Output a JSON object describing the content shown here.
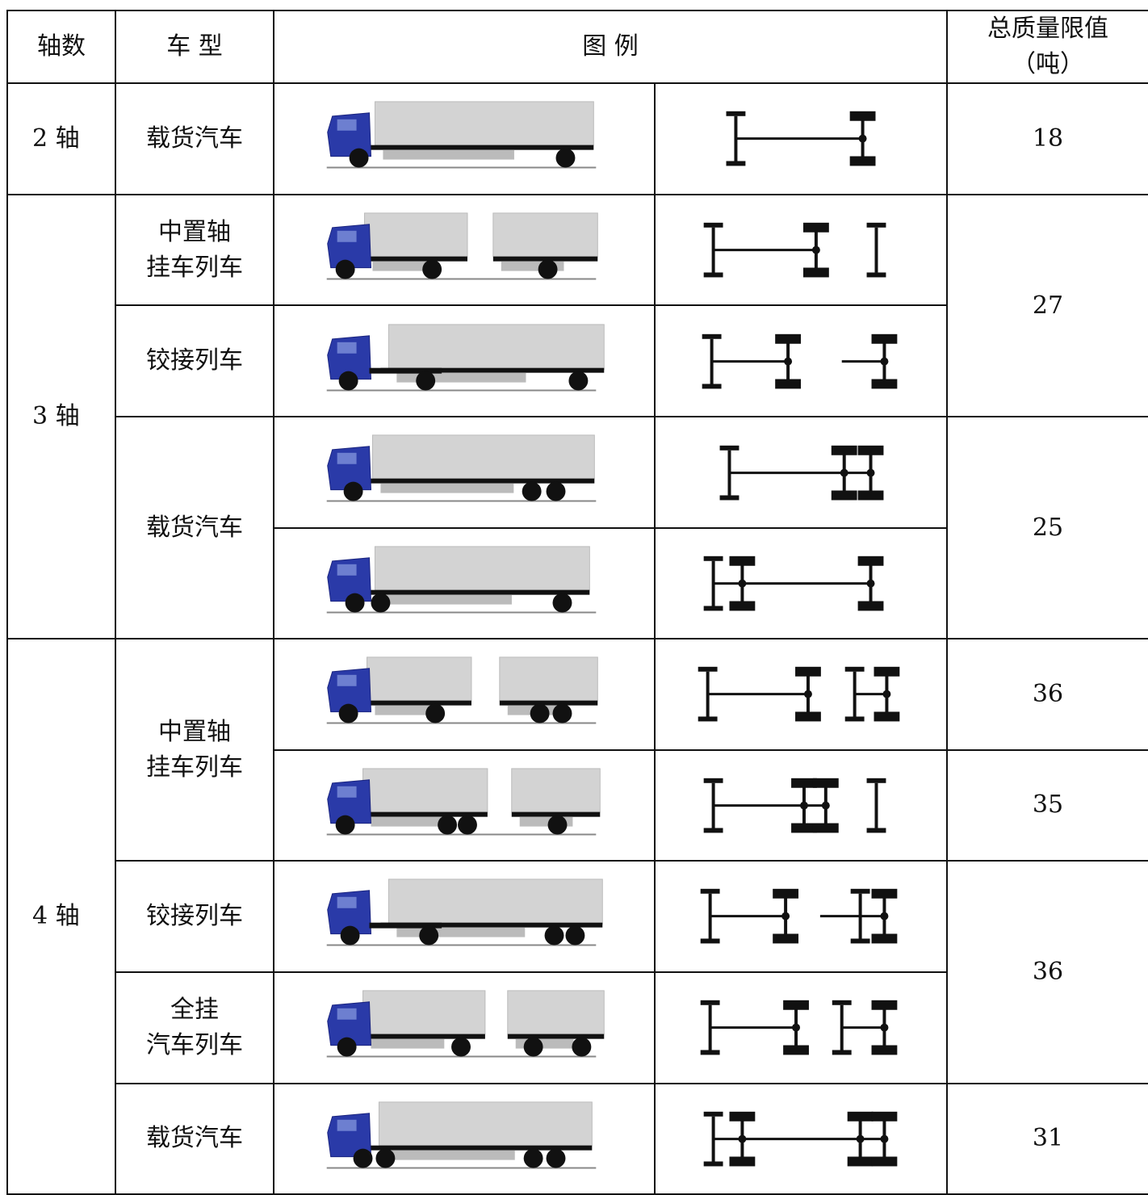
{
  "header": {
    "axle_count": "轴数",
    "vehicle_type": "车 型",
    "legend": "图 例",
    "limit": [
      "总质量限值",
      "（吨）"
    ]
  },
  "axles": [
    "2 轴",
    "3 轴",
    "4 轴"
  ],
  "vehicle_types": [
    [
      "载货汽车"
    ],
    [
      "中置轴",
      "挂车列车"
    ],
    [
      "铰接列车"
    ],
    [
      "载货汽车"
    ],
    [
      "中置轴",
      "挂车列车"
    ],
    [
      "铰接列车"
    ],
    [
      "全挂",
      "汽车列车"
    ],
    [
      "载货汽车"
    ]
  ],
  "limits": [
    "18",
    "27",
    "25",
    "36",
    "35",
    "36",
    "31"
  ]
}
